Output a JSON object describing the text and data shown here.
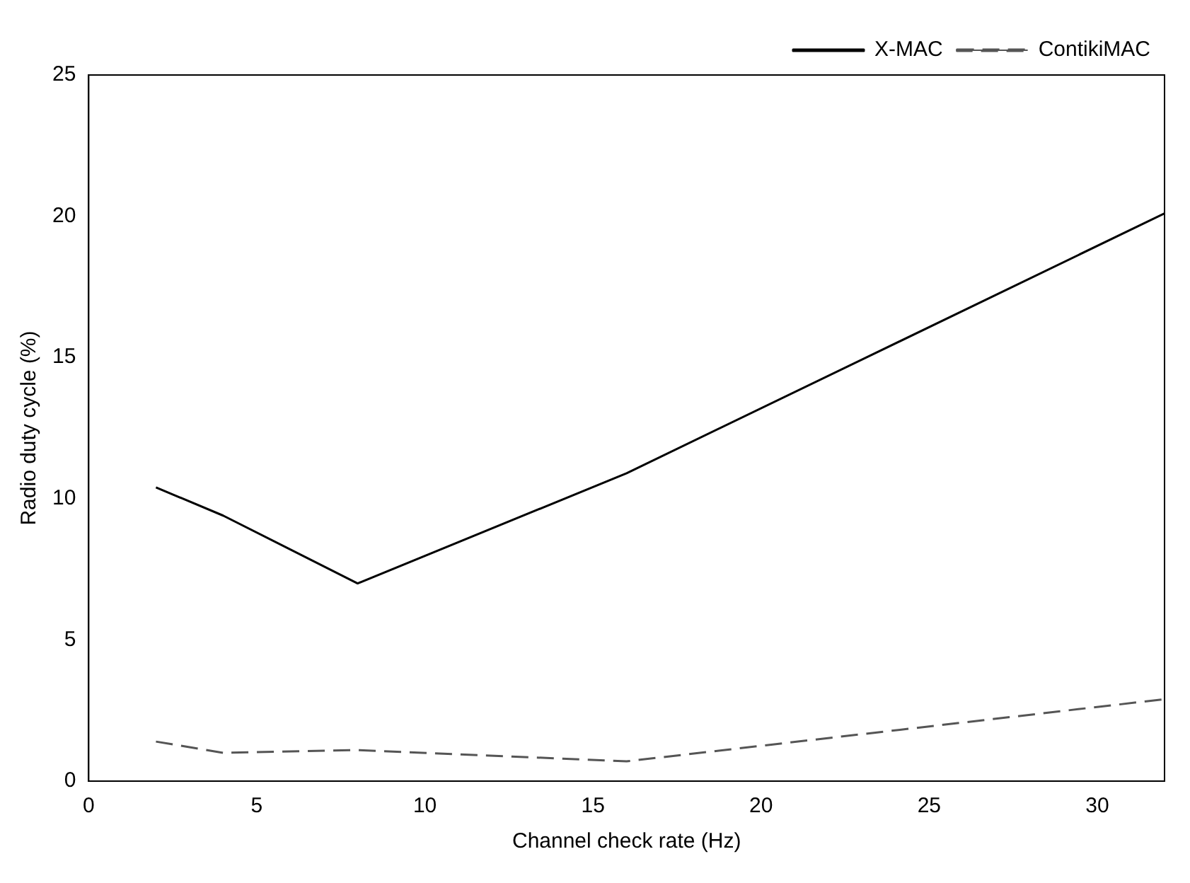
{
  "chart_data": {
    "type": "line",
    "xlabel": "Channel check rate (Hz)",
    "ylabel": "Radio duty cycle (%)",
    "x": [
      2,
      4,
      8,
      16,
      32
    ],
    "series": [
      {
        "name": "X-MAC",
        "color": "#000000",
        "values": [
          10.4,
          9.4,
          7.0,
          10.9,
          20.1
        ],
        "line_style": "solid"
      },
      {
        "name": "ContikiMAC",
        "color": "#555555",
        "values": [
          1.4,
          1.0,
          1.1,
          0.7,
          2.9
        ],
        "line_style": "dashed"
      }
    ],
    "xlim": [
      0,
      32
    ],
    "xticks": [
      0,
      5,
      10,
      15,
      20,
      25,
      30
    ],
    "ylim": [
      0,
      25
    ],
    "yticks": [
      0,
      5,
      10,
      15,
      20,
      25
    ],
    "grid": false,
    "legend": "top right",
    "marker": "none"
  }
}
